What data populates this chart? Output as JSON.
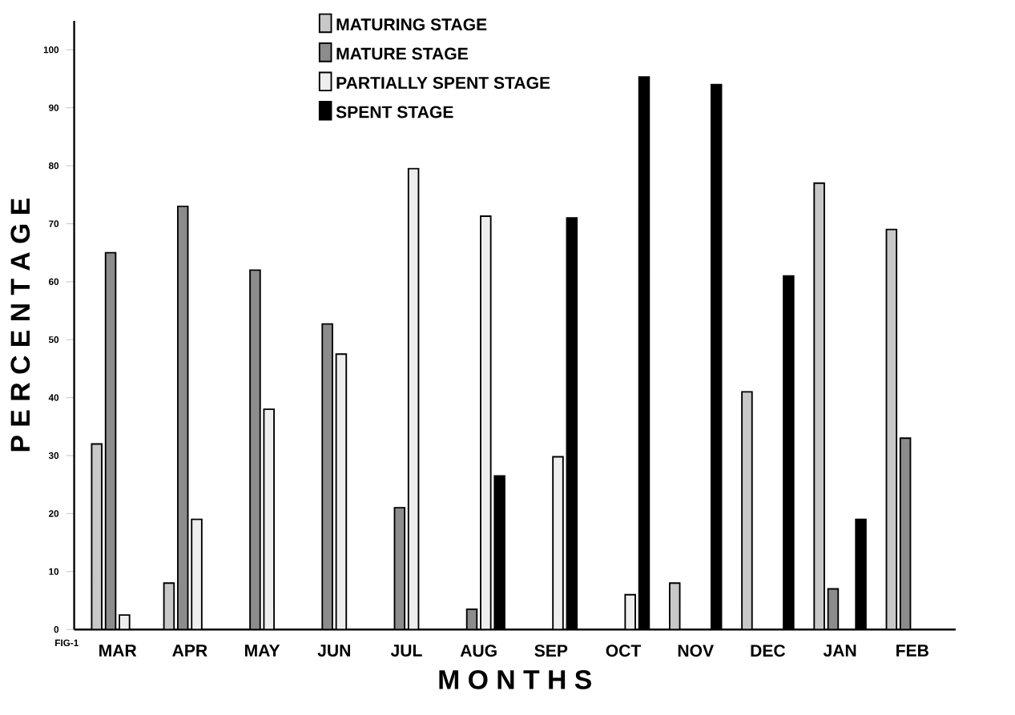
{
  "chart_data": {
    "type": "bar",
    "xlabel": "M O N T H S",
    "ylabel": "P E R C E N T A G E",
    "categories": [
      "MAR",
      "APR",
      "MAY",
      "JUN",
      "JUL",
      "AUG",
      "SEP",
      "OCT",
      "NOV",
      "DEC",
      "JAN",
      "FEB"
    ],
    "series": [
      {
        "name": "MATURING STAGE",
        "color": "#c8c8c8",
        "values": [
          32,
          8,
          0,
          0,
          0,
          0,
          0,
          0,
          8,
          41,
          77,
          69
        ]
      },
      {
        "name": "MATURE STAGE",
        "color": "#8c8c8c",
        "values": [
          65,
          73,
          62,
          52.7,
          21,
          3.5,
          0,
          0,
          0,
          0,
          7,
          33
        ]
      },
      {
        "name": "PARTIALLY SPENT STAGE",
        "color": "#eeeeee",
        "values": [
          2.5,
          19,
          38,
          47.5,
          79.5,
          71.3,
          29.8,
          6,
          0,
          0,
          0,
          0
        ]
      },
      {
        "name": "SPENT STAGE",
        "color": "#000000",
        "values": [
          0,
          0,
          0,
          0,
          0,
          26.5,
          71,
          95.3,
          94,
          61,
          19,
          0
        ]
      }
    ],
    "ylim": [
      0,
      105
    ],
    "yticks": [
      0,
      10,
      20,
      30,
      40,
      50,
      60,
      70,
      80,
      90,
      100
    ],
    "legend": "top",
    "annotations": [
      "FIG-1"
    ]
  }
}
